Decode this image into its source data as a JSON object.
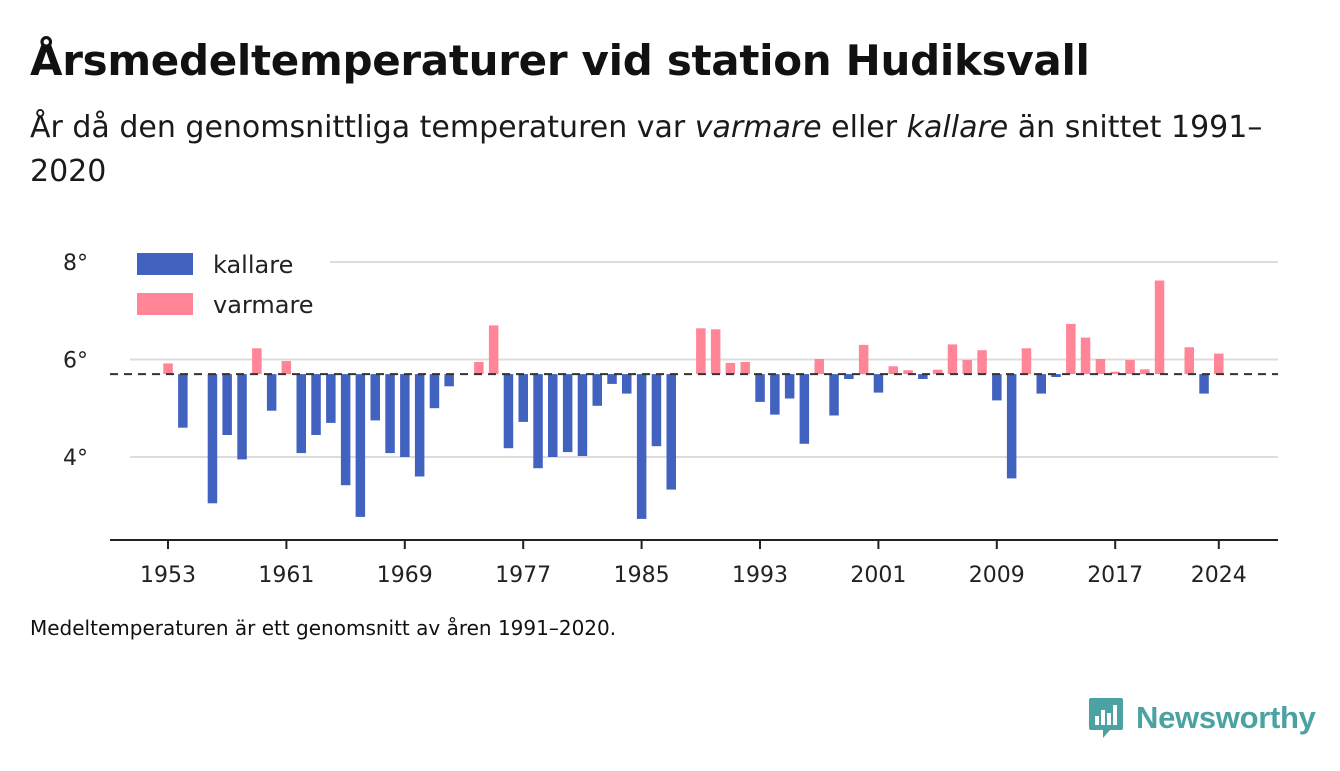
{
  "title": "Årsmedeltemperaturer vid station Hudiksvall",
  "subtitle": {
    "part1": "År då den genomsnittliga temperaturen var ",
    "warmer": "varmare",
    "part2": " eller ",
    "colder": "kallare",
    "part3": " än snittet 1991–2020"
  },
  "footnote": "Medeltemperaturen är ett genomsnitt av åren 1991–2020.",
  "brand": {
    "name": "Newsworthy",
    "icon": "bar-chart-speech-bubble-icon",
    "color": "#4aa3a2"
  },
  "chart_data": {
    "type": "bar",
    "baseline": 5.7,
    "baseline_style": "dashed",
    "ylim": [
      2.4,
      8.2
    ],
    "yticks": [
      {
        "value": 4,
        "label": "4°"
      },
      {
        "value": 6,
        "label": "6°"
      },
      {
        "value": 8,
        "label": "8°"
      }
    ],
    "xticks": [
      1953,
      1961,
      1969,
      1977,
      1985,
      1993,
      2001,
      2009,
      2017,
      2024
    ],
    "xlim": [
      1949,
      2029
    ],
    "grid": true,
    "legend": {
      "position": "top-left",
      "items": [
        {
          "key": "colder",
          "label": "kallare",
          "color": "#4262bf"
        },
        {
          "key": "warmer",
          "label": "varmare",
          "color": "#ff8597"
        }
      ]
    },
    "years": [
      1953,
      1954,
      1955,
      1956,
      1957,
      1958,
      1959,
      1960,
      1961,
      1962,
      1963,
      1964,
      1965,
      1966,
      1967,
      1968,
      1969,
      1970,
      1971,
      1972,
      1973,
      1974,
      1975,
      1976,
      1977,
      1978,
      1979,
      1980,
      1981,
      1982,
      1983,
      1984,
      1985,
      1986,
      1987,
      1988,
      1989,
      1990,
      1991,
      1992,
      1993,
      1994,
      1995,
      1996,
      1997,
      1998,
      1999,
      2000,
      2001,
      2002,
      2003,
      2004,
      2005,
      2006,
      2007,
      2008,
      2009,
      2010,
      2011,
      2012,
      2013,
      2014,
      2015,
      2016,
      2017,
      2018,
      2019,
      2020,
      2021,
      2022,
      2023,
      2024
    ],
    "values": [
      5.92,
      4.6,
      null,
      3.05,
      4.45,
      3.95,
      6.23,
      4.95,
      5.97,
      4.08,
      4.45,
      4.7,
      3.42,
      2.77,
      4.75,
      4.08,
      4.0,
      3.6,
      5.0,
      5.45,
      null,
      5.95,
      6.7,
      4.18,
      4.72,
      3.77,
      4.0,
      4.1,
      4.02,
      5.05,
      5.5,
      5.3,
      2.73,
      4.22,
      3.33,
      null,
      6.64,
      6.62,
      5.93,
      5.95,
      5.13,
      4.87,
      5.2,
      4.27,
      6.01,
      4.85,
      5.6,
      6.3,
      5.32,
      5.86,
      5.78,
      5.6,
      5.79,
      6.31,
      5.99,
      6.19,
      5.16,
      3.56,
      6.23,
      5.3,
      5.64,
      6.73,
      6.45,
      6.01,
      5.75,
      5.99,
      5.8,
      7.62,
      null,
      6.25,
      5.3,
      6.12
    ]
  }
}
